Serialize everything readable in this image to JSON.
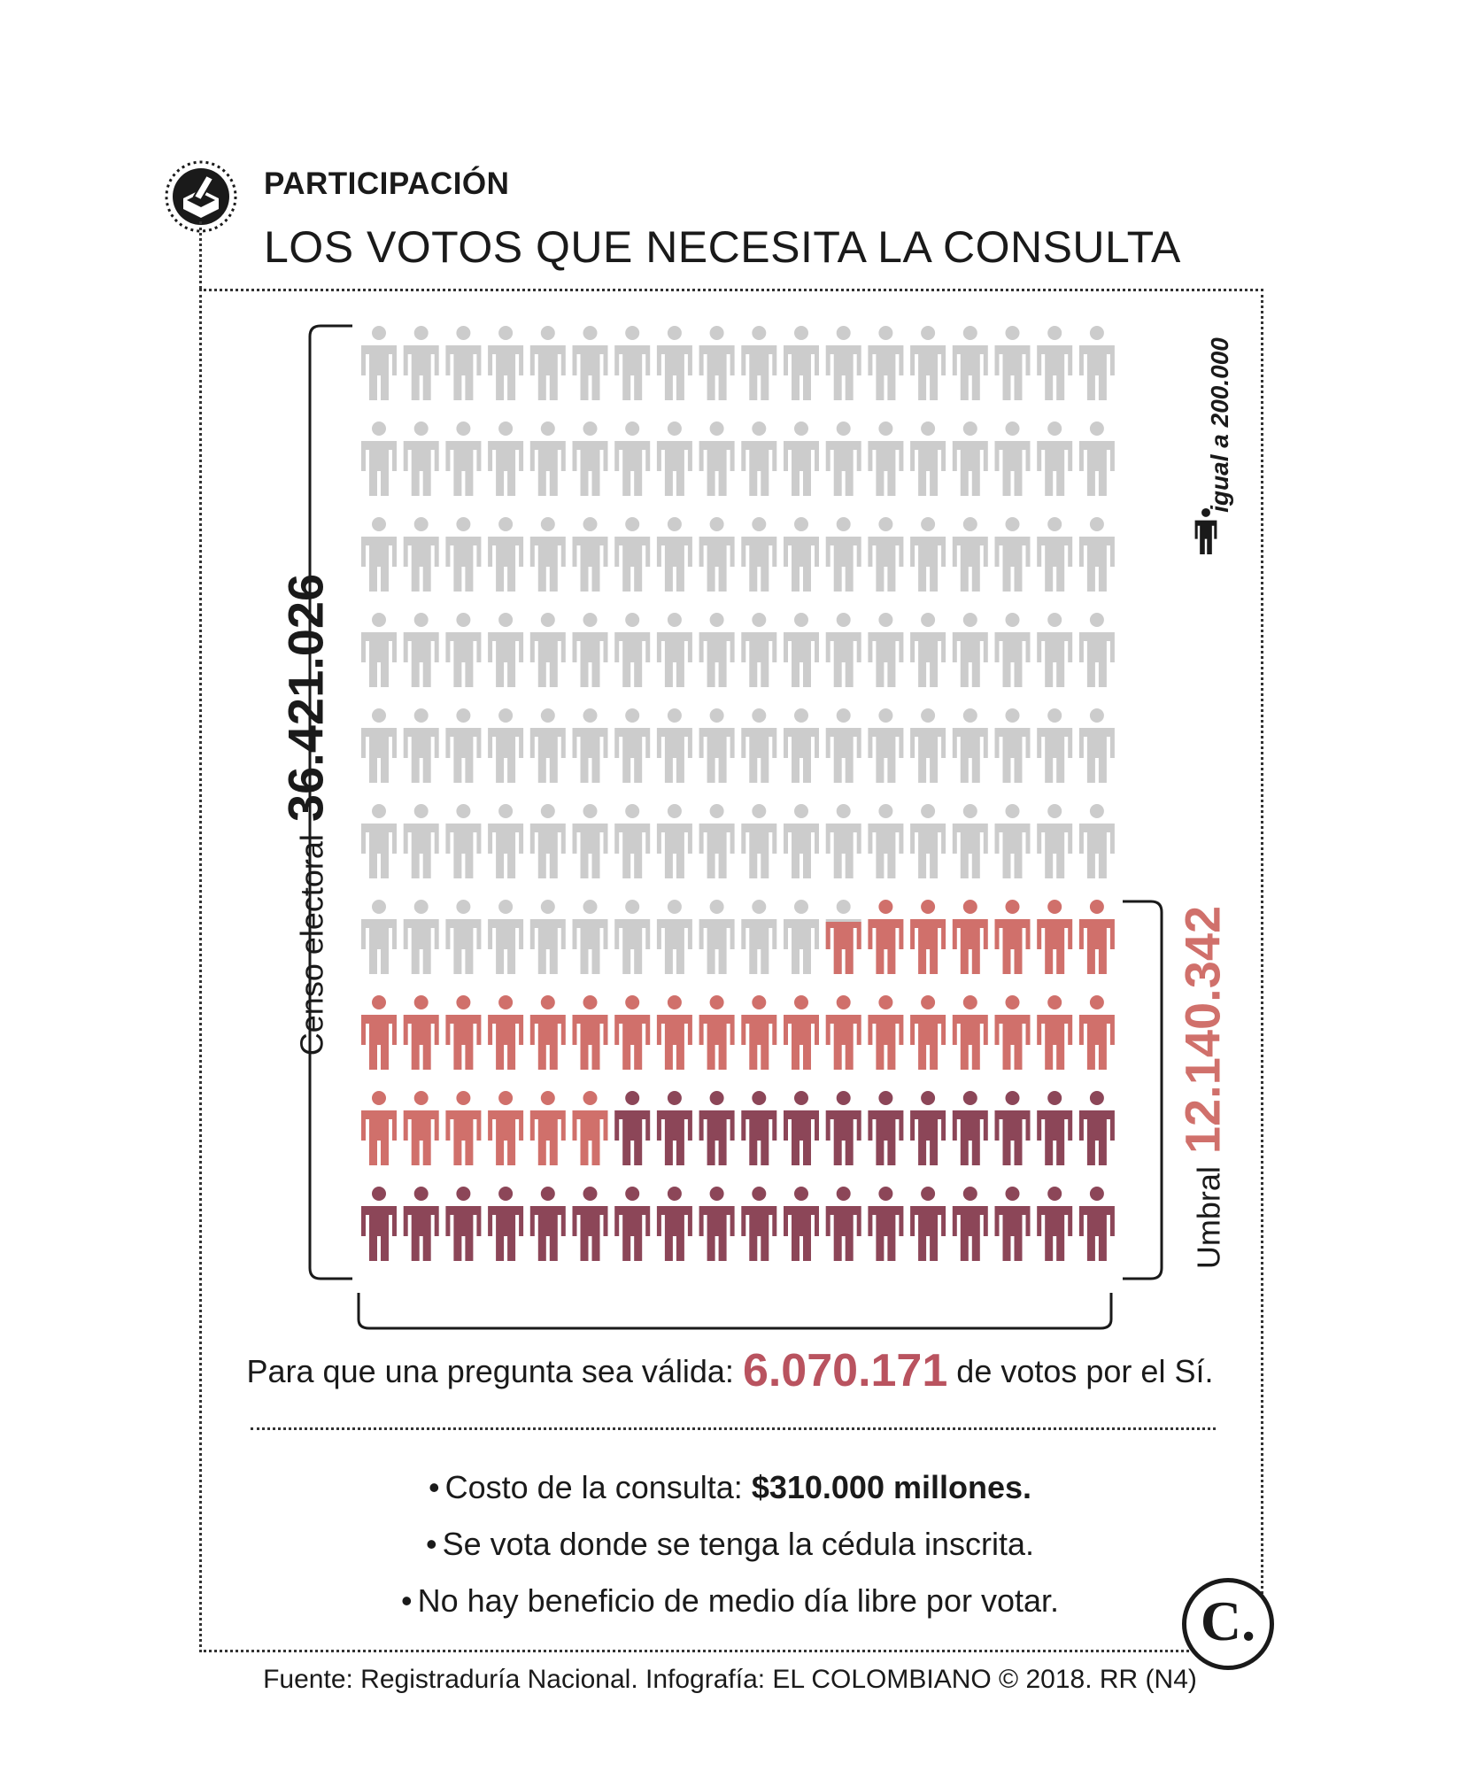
{
  "header": {
    "icon": "ballot-box-icon",
    "kicker": "PARTICIPACIÓN",
    "title": "LOS VOTOS QUE NECESITA LA CONSULTA"
  },
  "chart_data": {
    "type": "pictogram",
    "unit_label": "igual a 200.000",
    "unit_value": 200000,
    "grid": {
      "columns": 18,
      "rows": 10
    },
    "series": [
      {
        "name": "Censo electoral",
        "value": 36421026,
        "label": "36.421.026",
        "color": "#cccccc"
      },
      {
        "name": "Umbral",
        "value": 12140342,
        "label": "12.140.342",
        "color": "#d0706b"
      },
      {
        "name": "Para que una pregunta sea válida",
        "value": 6070171,
        "label": "6.070.171",
        "color": "#8c4658"
      }
    ]
  },
  "labels": {
    "censo_label": "Censo electoral",
    "censo_value": "36.421.026",
    "umbral_label": "Umbral",
    "umbral_value": "12.140.342",
    "legend": "igual a 200.000",
    "valid_prefix": "Para que una pregunta sea válida:",
    "valid_value": "6.070.171",
    "valid_suffix": "de votos por el Sí."
  },
  "notes": {
    "bullet": "•",
    "cost_prefix": "Costo de la consulta:",
    "cost_value": "$310.000 millones.",
    "note2": "Se vota donde se tenga la cédula inscrita.",
    "note3": "No hay beneficio de medio día libre por votar."
  },
  "logo": {
    "letter": "C."
  },
  "source": "Fuente: Registraduría Nacional. Infografía: EL COLOMBIANO © 2018. RR (N4)"
}
